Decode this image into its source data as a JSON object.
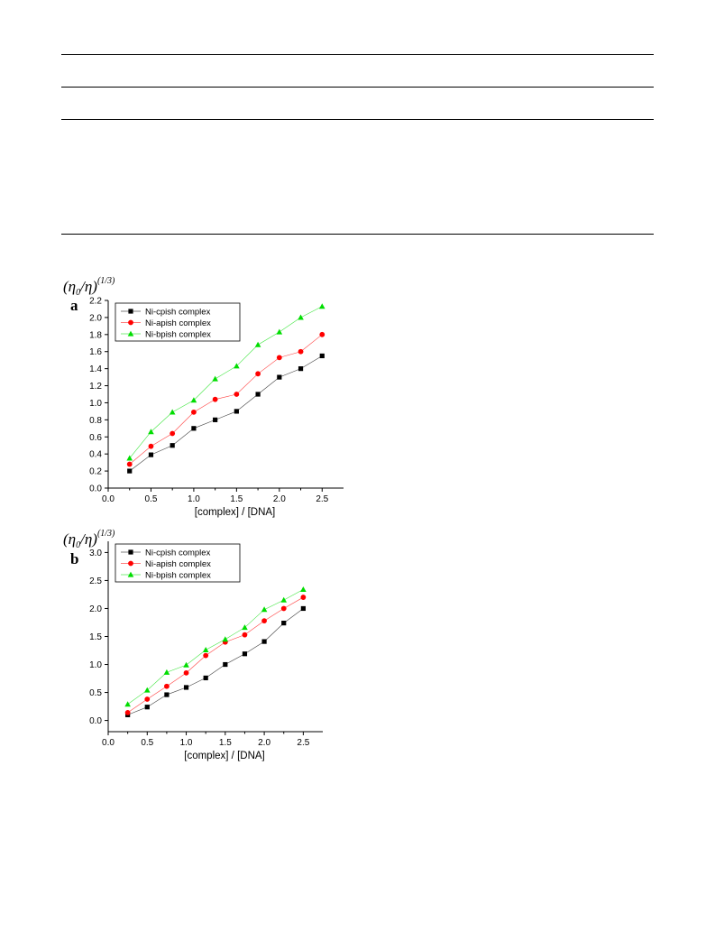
{
  "page": {
    "rules": [
      "top-rule",
      "rule-2",
      "rule-3",
      "rule-4"
    ]
  },
  "chart_data": [
    {
      "type": "line",
      "panel": "a",
      "ylabel": "(η0/η)(1/3)",
      "ylabel_parts": {
        "open": "(",
        "eta": "η",
        "sub": "0",
        "mid": "/η)",
        "exp": "(1/3)"
      },
      "xlabel": "[complex] / [DNA]",
      "xlim": [
        0.0,
        2.75
      ],
      "ylim": [
        0.0,
        2.2
      ],
      "x_ticks": [
        0.0,
        0.5,
        1.0,
        1.5,
        2.0,
        2.5
      ],
      "x_tick_labels": [
        "0.0",
        "0.5",
        "1.0",
        "1.5",
        "2.0",
        "2.5"
      ],
      "y_ticks": [
        0.0,
        0.2,
        0.4,
        0.6,
        0.8,
        1.0,
        1.2,
        1.4,
        1.6,
        1.8,
        2.0,
        2.2
      ],
      "y_tick_labels": [
        "0.0",
        "0.2",
        "0.4",
        "0.6",
        "0.8",
        "1.0",
        "1.2",
        "1.4",
        "1.6",
        "1.8",
        "2.0",
        "2.2"
      ],
      "legend_position": "top-left",
      "grid": false,
      "x": [
        0.25,
        0.5,
        0.75,
        1.0,
        1.25,
        1.5,
        1.75,
        2.0,
        2.25,
        2.5
      ],
      "series": [
        {
          "name": "Ni-cpish complex",
          "color": "#000000",
          "marker": "square",
          "values": [
            0.2,
            0.39,
            0.5,
            0.7,
            0.8,
            0.9,
            1.1,
            1.3,
            1.4,
            1.55
          ]
        },
        {
          "name": "Ni-apish complex",
          "color": "#ff0000",
          "marker": "circle",
          "values": [
            0.28,
            0.49,
            0.64,
            0.89,
            1.04,
            1.1,
            1.34,
            1.53,
            1.6,
            1.8
          ]
        },
        {
          "name": "Ni-bpish complex",
          "color": "#00dd00",
          "marker": "triangle",
          "values": [
            0.35,
            0.66,
            0.89,
            1.03,
            1.28,
            1.43,
            1.68,
            1.83,
            2.0,
            2.13
          ]
        }
      ]
    },
    {
      "type": "line",
      "panel": "b",
      "ylabel": "(η0/η)(1/3)",
      "ylabel_parts": {
        "open": "(",
        "eta": "η",
        "sub": "0",
        "mid": "/η)",
        "exp": "(1/3)"
      },
      "xlabel": "[complex] / [DNA]",
      "xlim": [
        0.0,
        2.75
      ],
      "ylim": [
        -0.2,
        3.2
      ],
      "x_ticks": [
        0.0,
        0.5,
        1.0,
        1.5,
        2.0,
        2.5
      ],
      "x_tick_labels": [
        "0.0",
        "0.5",
        "1.0",
        "1.5",
        "2.0",
        "2.5"
      ],
      "y_ticks": [
        0.0,
        0.5,
        1.0,
        1.5,
        2.0,
        2.5,
        3.0
      ],
      "y_tick_labels": [
        "0.0",
        "0.5",
        "1.0",
        "1.5",
        "2.0",
        "2.5",
        "3.0"
      ],
      "legend_position": "top-left",
      "grid": false,
      "x": [
        0.25,
        0.5,
        0.75,
        1.0,
        1.25,
        1.5,
        1.75,
        2.0,
        2.25,
        2.5
      ],
      "series": [
        {
          "name": "Ni-cpish complex",
          "color": "#000000",
          "marker": "square",
          "values": [
            0.1,
            0.24,
            0.46,
            0.59,
            0.76,
            1.0,
            1.19,
            1.41,
            1.74,
            2.0
          ]
        },
        {
          "name": "Ni-apish complex",
          "color": "#ff0000",
          "marker": "circle",
          "values": [
            0.14,
            0.38,
            0.61,
            0.85,
            1.16,
            1.4,
            1.53,
            1.78,
            2.0,
            2.2
          ]
        },
        {
          "name": "Ni-bpish complex",
          "color": "#00dd00",
          "marker": "triangle",
          "values": [
            0.29,
            0.54,
            0.86,
            0.99,
            1.26,
            1.45,
            1.66,
            1.98,
            2.15,
            2.34
          ]
        }
      ]
    }
  ]
}
